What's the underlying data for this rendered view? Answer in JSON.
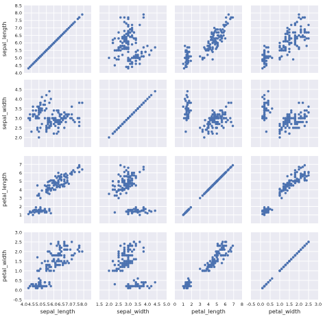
{
  "chart_data": {
    "type": "scatter",
    "variables": [
      "sepal_length",
      "sepal_width",
      "petal_length",
      "petal_width"
    ],
    "axes": {
      "sepal_length": {
        "label": "sepal_length",
        "lim": [
          4.0,
          8.5
        ],
        "ticks": [
          4.0,
          4.5,
          5.0,
          5.5,
          6.0,
          6.5,
          7.0,
          7.5,
          8.0,
          8.5
        ],
        "tick_labels": [
          "4.0",
          "4.5",
          "5.0",
          "5.5",
          "6.0",
          "6.5",
          "7.0",
          "7.5",
          "8.0",
          "8.5"
        ],
        "x_ticks": [
          4.0,
          4.5,
          5.0,
          5.5,
          6.0,
          6.5,
          7.0,
          7.5,
          8.0
        ],
        "x_tick_labels": [
          "4.0",
          "4.5",
          "5.0",
          "5.5",
          "6.0",
          "6.5",
          "7.0",
          "7.5",
          "8.0"
        ]
      },
      "sepal_width": {
        "label": "sepal_width",
        "lim": [
          1.5,
          5.0
        ],
        "ticks": [
          2.0,
          2.5,
          3.0,
          3.5,
          4.0,
          4.5
        ],
        "tick_labels": [
          "2.0",
          "2.5",
          "3.0",
          "3.5",
          "4.0",
          "4.5"
        ],
        "x_ticks": [
          1.5,
          2.0,
          2.5,
          3.0,
          3.5,
          4.0,
          4.5,
          5.0
        ],
        "x_tick_labels": [
          "1.5",
          "2.0",
          "2.5",
          "3.0",
          "3.5",
          "4.0",
          "4.5",
          "5.0"
        ]
      },
      "petal_length": {
        "label": "petal_length",
        "lim": [
          0,
          8
        ],
        "ticks": [
          1,
          2,
          3,
          4,
          5,
          6,
          7
        ],
        "tick_labels": [
          "1",
          "2",
          "3",
          "4",
          "5",
          "6",
          "7"
        ],
        "x_ticks": [
          0,
          1,
          2,
          3,
          4,
          5,
          6,
          7,
          8
        ],
        "x_tick_labels": [
          "0",
          "1",
          "2",
          "3",
          "4",
          "5",
          "6",
          "7",
          "8"
        ]
      },
      "petal_width": {
        "label": "petal_width",
        "lim": [
          -0.5,
          3.0
        ],
        "ticks": [
          -0.5,
          0.0,
          0.5,
          1.0,
          1.5,
          2.0,
          2.5,
          3.0
        ],
        "tick_labels": [
          "-0.5",
          "0.0",
          "0.5",
          "1.0",
          "1.5",
          "2.0",
          "2.5",
          "3.0"
        ],
        "x_ticks": [
          -0.5,
          0.0,
          0.5,
          1.0,
          1.5,
          2.0,
          2.5,
          3.0
        ],
        "x_tick_labels": [
          "-0.5",
          "0.0",
          "0.5",
          "1.0",
          "1.5",
          "2.0",
          "2.5",
          "3.0"
        ]
      }
    },
    "grid": true,
    "colors": {
      "point": "#4c72b0",
      "background": "#eaeaf2",
      "grid": "#ffffff",
      "text": "#222222"
    },
    "points": [
      [
        5.1,
        3.5,
        1.4,
        0.2
      ],
      [
        4.9,
        3.0,
        1.4,
        0.2
      ],
      [
        4.7,
        3.2,
        1.3,
        0.2
      ],
      [
        4.6,
        3.1,
        1.5,
        0.2
      ],
      [
        5.0,
        3.6,
        1.4,
        0.2
      ],
      [
        5.4,
        3.9,
        1.7,
        0.4
      ],
      [
        4.6,
        3.4,
        1.4,
        0.3
      ],
      [
        5.0,
        3.4,
        1.5,
        0.2
      ],
      [
        4.4,
        2.9,
        1.4,
        0.2
      ],
      [
        4.9,
        3.1,
        1.5,
        0.1
      ],
      [
        5.4,
        3.7,
        1.5,
        0.2
      ],
      [
        4.8,
        3.4,
        1.6,
        0.2
      ],
      [
        4.8,
        3.0,
        1.4,
        0.1
      ],
      [
        4.3,
        3.0,
        1.1,
        0.1
      ],
      [
        5.8,
        4.0,
        1.2,
        0.2
      ],
      [
        5.7,
        4.4,
        1.5,
        0.4
      ],
      [
        5.4,
        3.9,
        1.3,
        0.4
      ],
      [
        5.1,
        3.5,
        1.4,
        0.3
      ],
      [
        5.7,
        3.8,
        1.7,
        0.3
      ],
      [
        5.1,
        3.8,
        1.5,
        0.3
      ],
      [
        5.4,
        3.4,
        1.7,
        0.2
      ],
      [
        5.1,
        3.7,
        1.5,
        0.4
      ],
      [
        4.6,
        3.6,
        1.0,
        0.2
      ],
      [
        5.1,
        3.3,
        1.7,
        0.5
      ],
      [
        4.8,
        3.4,
        1.9,
        0.2
      ],
      [
        5.0,
        3.0,
        1.6,
        0.2
      ],
      [
        5.0,
        3.4,
        1.6,
        0.4
      ],
      [
        5.2,
        3.5,
        1.5,
        0.2
      ],
      [
        5.2,
        3.4,
        1.4,
        0.2
      ],
      [
        4.7,
        3.2,
        1.6,
        0.2
      ],
      [
        4.8,
        3.1,
        1.6,
        0.2
      ],
      [
        5.4,
        3.4,
        1.5,
        0.4
      ],
      [
        5.2,
        4.1,
        1.5,
        0.1
      ],
      [
        5.5,
        4.2,
        1.4,
        0.2
      ],
      [
        4.9,
        3.1,
        1.5,
        0.2
      ],
      [
        5.0,
        3.2,
        1.2,
        0.2
      ],
      [
        5.5,
        3.5,
        1.3,
        0.2
      ],
      [
        4.9,
        3.6,
        1.4,
        0.1
      ],
      [
        4.4,
        3.0,
        1.3,
        0.2
      ],
      [
        5.1,
        3.4,
        1.5,
        0.2
      ],
      [
        5.0,
        3.5,
        1.3,
        0.3
      ],
      [
        4.5,
        2.3,
        1.3,
        0.3
      ],
      [
        4.4,
        3.2,
        1.3,
        0.2
      ],
      [
        5.0,
        3.5,
        1.6,
        0.6
      ],
      [
        5.1,
        3.8,
        1.9,
        0.4
      ],
      [
        4.8,
        3.0,
        1.4,
        0.3
      ],
      [
        5.1,
        3.8,
        1.6,
        0.2
      ],
      [
        4.6,
        3.2,
        1.4,
        0.2
      ],
      [
        5.3,
        3.7,
        1.5,
        0.2
      ],
      [
        5.0,
        3.3,
        1.4,
        0.2
      ],
      [
        7.0,
        3.2,
        4.7,
        1.4
      ],
      [
        6.4,
        3.2,
        4.5,
        1.5
      ],
      [
        6.9,
        3.1,
        4.9,
        1.5
      ],
      [
        5.5,
        2.3,
        4.0,
        1.3
      ],
      [
        6.5,
        2.8,
        4.6,
        1.5
      ],
      [
        5.7,
        2.8,
        4.5,
        1.3
      ],
      [
        6.3,
        3.3,
        4.7,
        1.6
      ],
      [
        4.9,
        2.4,
        3.3,
        1.0
      ],
      [
        6.6,
        2.9,
        4.6,
        1.3
      ],
      [
        5.2,
        2.7,
        3.9,
        1.4
      ],
      [
        5.0,
        2.0,
        3.5,
        1.0
      ],
      [
        5.9,
        3.0,
        4.2,
        1.5
      ],
      [
        6.0,
        2.2,
        4.0,
        1.0
      ],
      [
        6.1,
        2.9,
        4.7,
        1.4
      ],
      [
        5.6,
        2.9,
        3.6,
        1.3
      ],
      [
        6.7,
        3.1,
        4.4,
        1.4
      ],
      [
        5.6,
        3.0,
        4.5,
        1.5
      ],
      [
        5.8,
        2.7,
        4.1,
        1.0
      ],
      [
        6.2,
        2.2,
        4.5,
        1.5
      ],
      [
        5.6,
        2.5,
        3.9,
        1.1
      ],
      [
        5.9,
        3.2,
        4.8,
        1.8
      ],
      [
        6.1,
        2.8,
        4.0,
        1.3
      ],
      [
        6.3,
        2.5,
        4.9,
        1.5
      ],
      [
        6.1,
        2.8,
        4.7,
        1.2
      ],
      [
        6.4,
        2.9,
        4.3,
        1.3
      ],
      [
        6.6,
        3.0,
        4.4,
        1.4
      ],
      [
        6.8,
        2.8,
        4.8,
        1.4
      ],
      [
        6.7,
        3.0,
        5.0,
        1.7
      ],
      [
        6.0,
        2.9,
        4.5,
        1.5
      ],
      [
        5.7,
        2.6,
        3.5,
        1.0
      ],
      [
        5.5,
        2.4,
        3.8,
        1.1
      ],
      [
        5.5,
        2.4,
        3.7,
        1.0
      ],
      [
        5.8,
        2.7,
        3.9,
        1.2
      ],
      [
        6.0,
        2.7,
        5.1,
        1.6
      ],
      [
        5.4,
        3.0,
        4.5,
        1.5
      ],
      [
        6.0,
        3.4,
        4.5,
        1.6
      ],
      [
        6.7,
        3.1,
        4.7,
        1.5
      ],
      [
        6.3,
        2.3,
        4.4,
        1.3
      ],
      [
        5.6,
        3.0,
        4.1,
        1.3
      ],
      [
        5.5,
        2.5,
        4.0,
        1.3
      ],
      [
        5.5,
        2.6,
        4.4,
        1.2
      ],
      [
        6.1,
        3.0,
        4.6,
        1.4
      ],
      [
        5.8,
        2.6,
        4.0,
        1.2
      ],
      [
        5.0,
        2.3,
        3.3,
        1.0
      ],
      [
        5.6,
        2.7,
        4.2,
        1.3
      ],
      [
        5.7,
        3.0,
        4.2,
        1.2
      ],
      [
        5.7,
        2.9,
        4.2,
        1.3
      ],
      [
        6.2,
        2.9,
        4.3,
        1.3
      ],
      [
        5.1,
        2.5,
        3.0,
        1.1
      ],
      [
        5.7,
        2.8,
        4.1,
        1.3
      ],
      [
        6.3,
        3.3,
        6.0,
        2.5
      ],
      [
        5.8,
        2.7,
        5.1,
        1.9
      ],
      [
        7.1,
        3.0,
        5.9,
        2.1
      ],
      [
        6.3,
        2.9,
        5.6,
        1.8
      ],
      [
        6.5,
        3.0,
        5.8,
        2.2
      ],
      [
        7.6,
        3.0,
        6.6,
        2.1
      ],
      [
        4.9,
        2.5,
        4.5,
        1.7
      ],
      [
        7.3,
        2.9,
        6.3,
        1.8
      ],
      [
        6.7,
        2.5,
        5.8,
        1.8
      ],
      [
        7.2,
        3.6,
        6.1,
        2.5
      ],
      [
        6.5,
        3.2,
        5.1,
        2.0
      ],
      [
        6.4,
        2.7,
        5.3,
        1.9
      ],
      [
        6.8,
        3.0,
        5.5,
        2.1
      ],
      [
        5.7,
        2.5,
        5.0,
        2.0
      ],
      [
        5.8,
        2.8,
        5.1,
        2.4
      ],
      [
        6.4,
        3.2,
        5.3,
        2.3
      ],
      [
        6.5,
        3.0,
        5.5,
        1.8
      ],
      [
        7.7,
        3.8,
        6.7,
        2.2
      ],
      [
        7.7,
        2.6,
        6.9,
        2.3
      ],
      [
        6.0,
        2.2,
        5.0,
        1.5
      ],
      [
        6.9,
        3.2,
        5.7,
        2.3
      ],
      [
        5.6,
        2.8,
        4.9,
        2.0
      ],
      [
        7.7,
        2.8,
        6.7,
        2.0
      ],
      [
        6.3,
        2.7,
        4.9,
        1.8
      ],
      [
        6.7,
        3.3,
        5.7,
        2.1
      ],
      [
        7.2,
        3.2,
        6.0,
        1.8
      ],
      [
        6.2,
        2.8,
        4.8,
        1.8
      ],
      [
        6.1,
        3.0,
        4.9,
        1.8
      ],
      [
        6.4,
        2.8,
        5.6,
        2.1
      ],
      [
        7.2,
        3.0,
        5.8,
        1.6
      ],
      [
        7.4,
        2.8,
        6.1,
        1.9
      ],
      [
        7.9,
        3.8,
        6.4,
        2.0
      ],
      [
        6.4,
        2.8,
        5.6,
        2.2
      ],
      [
        6.3,
        2.8,
        5.1,
        1.5
      ],
      [
        6.1,
        2.6,
        5.6,
        1.4
      ],
      [
        7.7,
        3.0,
        6.1,
        2.3
      ],
      [
        6.3,
        3.4,
        5.6,
        2.4
      ],
      [
        6.4,
        3.1,
        5.5,
        1.8
      ],
      [
        6.0,
        3.0,
        4.8,
        1.8
      ],
      [
        6.9,
        3.1,
        5.4,
        2.1
      ],
      [
        6.7,
        3.1,
        5.6,
        2.4
      ],
      [
        6.9,
        3.1,
        5.1,
        2.3
      ],
      [
        5.8,
        2.7,
        5.1,
        1.9
      ],
      [
        6.8,
        3.2,
        5.9,
        2.3
      ],
      [
        6.7,
        3.3,
        5.7,
        2.5
      ],
      [
        6.7,
        3.0,
        5.2,
        2.3
      ],
      [
        6.3,
        2.5,
        5.0,
        1.9
      ],
      [
        6.5,
        3.0,
        5.2,
        2.0
      ],
      [
        6.2,
        3.4,
        5.4,
        2.3
      ],
      [
        5.9,
        3.0,
        5.1,
        1.8
      ]
    ]
  }
}
